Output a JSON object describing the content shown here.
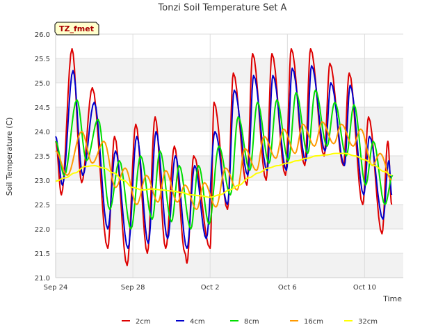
{
  "chart_data": {
    "type": "line",
    "title": "Tonzi Soil Temperature Set A",
    "xlabel": "Time",
    "ylabel": "Soil Temperature (C)",
    "badge": "TZ_fmet",
    "xlim_days": [
      0,
      18
    ],
    "ylim": [
      21.0,
      26.0
    ],
    "x_ticks": [
      {
        "day": 0,
        "label": "Sep 24"
      },
      {
        "day": 4,
        "label": "Sep 28"
      },
      {
        "day": 8,
        "label": "Oct 2"
      },
      {
        "day": 12,
        "label": "Oct 6"
      },
      {
        "day": 16,
        "label": "Oct 10"
      }
    ],
    "y_ticks": [
      {
        "v": 21.0,
        "label": "21.0"
      },
      {
        "v": 21.5,
        "label": "21.5"
      },
      {
        "v": 22.0,
        "label": "22.0"
      },
      {
        "v": 22.5,
        "label": "22.5"
      },
      {
        "v": 23.0,
        "label": "23.0"
      },
      {
        "v": 23.5,
        "label": "23.5"
      },
      {
        "v": 24.0,
        "label": "24.0"
      },
      {
        "v": 24.5,
        "label": "24.5"
      },
      {
        "v": 25.0,
        "label": "25.0"
      },
      {
        "v": 25.5,
        "label": "25.5"
      },
      {
        "v": 26.0,
        "label": "26.0"
      }
    ],
    "grid": true,
    "legend_position": "bottom",
    "series": [
      {
        "name": "2cm",
        "color": "#dd0000",
        "phase": 0.58,
        "start": [
          0,
          23.8
        ],
        "extremes": [
          [
            0.3,
            22.7
          ],
          [
            0.85,
            25.7
          ],
          [
            1.3,
            22.95
          ],
          [
            1.9,
            24.9
          ],
          [
            2.7,
            21.6
          ],
          [
            3.05,
            23.9
          ],
          [
            3.7,
            21.25
          ],
          [
            4.15,
            24.15
          ],
          [
            4.7,
            21.5
          ],
          [
            5.15,
            24.3
          ],
          [
            5.7,
            21.6
          ],
          [
            6.15,
            23.7
          ],
          [
            6.7,
            21.5
          ],
          [
            7.15,
            23.5
          ],
          [
            6.8,
            21.3
          ],
          [
            7.7,
            21.25
          ]
        ],
        "data": [
          [
            0,
            23.8
          ],
          [
            0.3,
            22.7
          ],
          [
            0.85,
            25.7
          ],
          [
            1.35,
            22.95
          ],
          [
            1.9,
            24.9
          ],
          [
            2.7,
            21.6
          ],
          [
            3.05,
            23.9
          ],
          [
            3.7,
            21.25
          ],
          [
            4.15,
            24.15
          ],
          [
            4.75,
            21.5
          ],
          [
            5.15,
            24.3
          ],
          [
            5.7,
            21.6
          ],
          [
            6.15,
            23.7
          ],
          [
            6.7,
            21.5
          ],
          [
            7.15,
            23.5
          ],
          [
            6.8,
            21.3
          ],
          [
            8,
            21.6
          ],
          [
            8.2,
            24.6
          ],
          [
            8.9,
            22.4
          ],
          [
            9.2,
            25.2
          ],
          [
            9.9,
            22.9
          ],
          [
            10.2,
            25.6
          ],
          [
            10.9,
            23.0
          ],
          [
            11.2,
            25.6
          ],
          [
            11.9,
            23.1
          ],
          [
            12.2,
            25.7
          ],
          [
            12.9,
            23.3
          ],
          [
            13.2,
            25.7
          ],
          [
            13.9,
            23.5
          ],
          [
            14.2,
            25.4
          ],
          [
            14.9,
            23.3
          ],
          [
            15.2,
            25.2
          ],
          [
            15.9,
            22.5
          ],
          [
            16.2,
            24.3
          ],
          [
            16.9,
            21.9
          ],
          [
            17.2,
            23.8
          ],
          [
            17.4,
            22.5
          ]
        ]
      },
      {
        "name": "4cm",
        "color": "#0000cc",
        "data": [
          [
            0,
            23.9
          ],
          [
            0.35,
            22.9
          ],
          [
            0.9,
            25.25
          ],
          [
            1.4,
            23.1
          ],
          [
            2.0,
            24.6
          ],
          [
            2.7,
            22.0
          ],
          [
            3.1,
            23.6
          ],
          [
            3.75,
            21.6
          ],
          [
            4.2,
            23.9
          ],
          [
            4.8,
            21.7
          ],
          [
            5.2,
            24.0
          ],
          [
            5.8,
            21.8
          ],
          [
            6.2,
            23.5
          ],
          [
            6.8,
            21.6
          ],
          [
            7.2,
            23.3
          ],
          [
            7.8,
            21.8
          ],
          [
            8.25,
            24.0
          ],
          [
            8.9,
            22.5
          ],
          [
            9.25,
            24.85
          ],
          [
            9.95,
            23.1
          ],
          [
            10.25,
            25.15
          ],
          [
            10.95,
            23.2
          ],
          [
            11.25,
            25.15
          ],
          [
            11.95,
            23.2
          ],
          [
            12.25,
            25.3
          ],
          [
            12.95,
            23.4
          ],
          [
            13.25,
            25.35
          ],
          [
            13.95,
            23.6
          ],
          [
            14.25,
            25.0
          ],
          [
            14.95,
            23.3
          ],
          [
            15.25,
            24.95
          ],
          [
            15.95,
            22.7
          ],
          [
            16.25,
            23.9
          ],
          [
            16.95,
            22.2
          ],
          [
            17.25,
            23.4
          ],
          [
            17.4,
            22.7
          ]
        ]
      },
      {
        "name": "8cm",
        "color": "#00dd00",
        "data": [
          [
            0,
            23.8
          ],
          [
            0.45,
            23.1
          ],
          [
            1.1,
            24.65
          ],
          [
            1.6,
            23.4
          ],
          [
            2.2,
            24.25
          ],
          [
            2.8,
            22.4
          ],
          [
            3.3,
            23.4
          ],
          [
            3.9,
            22.0
          ],
          [
            4.4,
            23.5
          ],
          [
            5.0,
            22.2
          ],
          [
            5.4,
            23.6
          ],
          [
            6.0,
            22.15
          ],
          [
            6.4,
            23.3
          ],
          [
            7.0,
            22.0
          ],
          [
            7.4,
            23.3
          ],
          [
            7.95,
            22.1
          ],
          [
            8.45,
            23.7
          ],
          [
            9.05,
            22.7
          ],
          [
            9.45,
            24.3
          ],
          [
            10.05,
            23.2
          ],
          [
            10.45,
            24.6
          ],
          [
            11.05,
            23.35
          ],
          [
            11.45,
            24.65
          ],
          [
            12.05,
            23.4
          ],
          [
            12.45,
            24.8
          ],
          [
            13.05,
            23.55
          ],
          [
            13.45,
            24.85
          ],
          [
            14.05,
            23.7
          ],
          [
            14.45,
            24.6
          ],
          [
            15.05,
            23.5
          ],
          [
            15.45,
            24.55
          ],
          [
            16.05,
            22.9
          ],
          [
            16.45,
            23.8
          ],
          [
            17.05,
            22.5
          ],
          [
            17.45,
            23.1
          ]
        ]
      },
      {
        "name": "16cm",
        "color": "#ff9900",
        "data": [
          [
            0,
            23.6
          ],
          [
            0.6,
            23.1
          ],
          [
            1.35,
            24.0
          ],
          [
            1.9,
            23.35
          ],
          [
            2.5,
            23.8
          ],
          [
            3.1,
            22.85
          ],
          [
            3.6,
            23.25
          ],
          [
            4.2,
            22.5
          ],
          [
            4.7,
            23.1
          ],
          [
            5.3,
            22.55
          ],
          [
            5.7,
            23.2
          ],
          [
            6.3,
            22.55
          ],
          [
            6.7,
            22.9
          ],
          [
            7.3,
            22.4
          ],
          [
            7.7,
            22.95
          ],
          [
            8.3,
            22.45
          ],
          [
            8.8,
            23.25
          ],
          [
            9.4,
            22.8
          ],
          [
            9.8,
            23.65
          ],
          [
            10.4,
            23.2
          ],
          [
            10.8,
            23.9
          ],
          [
            11.4,
            23.45
          ],
          [
            11.8,
            24.05
          ],
          [
            12.4,
            23.55
          ],
          [
            12.8,
            24.15
          ],
          [
            13.4,
            23.7
          ],
          [
            13.8,
            24.2
          ],
          [
            14.4,
            23.75
          ],
          [
            14.8,
            24.15
          ],
          [
            15.4,
            23.7
          ],
          [
            15.8,
            24.05
          ],
          [
            16.4,
            23.3
          ],
          [
            16.8,
            23.55
          ],
          [
            17.4,
            23.0
          ]
        ]
      },
      {
        "name": "32cm",
        "color": "#ffff00",
        "data": [
          [
            0,
            22.98
          ],
          [
            0.5,
            23.05
          ],
          [
            1.0,
            23.15
          ],
          [
            1.5,
            23.28
          ],
          [
            2.0,
            23.3
          ],
          [
            2.5,
            23.25
          ],
          [
            3.0,
            23.15
          ],
          [
            3.5,
            23.0
          ],
          [
            4.0,
            22.85
          ],
          [
            4.5,
            22.8
          ],
          [
            5.0,
            22.82
          ],
          [
            5.5,
            22.8
          ],
          [
            6.0,
            22.78
          ],
          [
            6.5,
            22.75
          ],
          [
            7.0,
            22.7
          ],
          [
            7.5,
            22.68
          ],
          [
            8.0,
            22.65
          ],
          [
            8.5,
            22.7
          ],
          [
            9.0,
            22.8
          ],
          [
            9.5,
            22.9
          ],
          [
            10.0,
            23.05
          ],
          [
            10.5,
            23.15
          ],
          [
            11.0,
            23.25
          ],
          [
            11.5,
            23.3
          ],
          [
            12.0,
            23.35
          ],
          [
            12.5,
            23.4
          ],
          [
            13.0,
            23.45
          ],
          [
            13.5,
            23.5
          ],
          [
            14.0,
            23.52
          ],
          [
            14.5,
            23.55
          ],
          [
            15.0,
            23.55
          ],
          [
            15.5,
            23.5
          ],
          [
            16.0,
            23.42
          ],
          [
            16.5,
            23.3
          ],
          [
            17.0,
            23.18
          ],
          [
            17.4,
            23.1
          ]
        ]
      }
    ]
  }
}
